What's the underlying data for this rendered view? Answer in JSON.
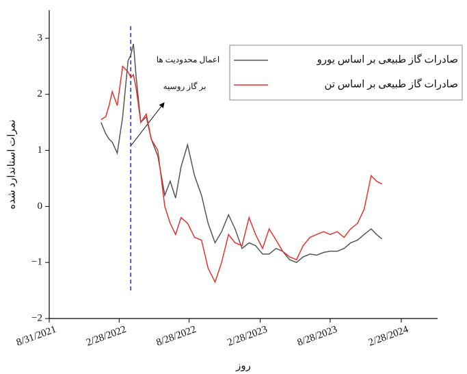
{
  "chart_data": {
    "type": "line",
    "ylabel": "نمرات استاندارد شده",
    "xlabel": "روز",
    "annotation": [
      "اعمال محدودیت ها",
      "بر گاز روسیه"
    ],
    "legend": "upper right",
    "x": [
      "1/12/2022",
      "1/24/2022",
      "2/2/2022",
      "2/10/2022",
      "2/23/2022",
      "3/9/2022",
      "3/23/2022",
      "3/30/2022",
      "4/6/2022",
      "4/13/2022",
      "4/25/2022",
      "5/9/2022",
      "5/22/2022",
      "6/8/2022",
      "6/26/2022",
      "7/10/2022",
      "7/24/2022",
      "8/7/2022",
      "8/24/2022",
      "9/11/2022",
      "9/29/2022",
      "10/16/2022",
      "11/3/2022",
      "11/20/2022",
      "12/8/2022",
      "12/25/2022",
      "1/12/2023",
      "1/30/2023",
      "2/16/2023",
      "3/6/2023",
      "3/23/2023",
      "4/10/2023",
      "4/27/2023",
      "5/15/2023",
      "6/2/2023",
      "6/19/2023",
      "7/7/2023",
      "7/24/2023",
      "8/11/2023",
      "8/28/2023",
      "9/15/2023",
      "10/3/2023",
      "10/20/2023",
      "11/7/2023",
      "11/24/2023",
      "12/12/2023",
      "12/26/2023",
      "1/9/2024"
    ],
    "series": [
      {
        "name": "صادرات گاز طبیعی بر اساس یورو",
        "color": "#555555",
        "values": [
          1.5,
          1.3,
          1.2,
          1.15,
          0.95,
          1.6,
          2.6,
          2.7,
          2.9,
          2.3,
          1.5,
          1.6,
          1.2,
          0.9,
          0.2,
          0.45,
          0.15,
          0.7,
          1.1,
          0.55,
          0.2,
          -0.3,
          -0.65,
          -0.45,
          -0.15,
          -0.4,
          -0.75,
          -0.65,
          -0.7,
          -0.85,
          -0.85,
          -0.75,
          -0.8,
          -0.95,
          -1.0,
          -0.9,
          -0.85,
          -0.87,
          -0.82,
          -0.8,
          -0.8,
          -0.75,
          -0.65,
          -0.6,
          -0.5,
          -0.4,
          -0.5,
          -0.58
        ]
      },
      {
        "name": "صادرات گاز طبیعی بر اساس تن",
        "color": "#e8302a",
        "values": [
          1.55,
          1.6,
          1.8,
          2.05,
          1.8,
          2.5,
          2.4,
          2.3,
          2.35,
          2.1,
          1.5,
          1.65,
          1.2,
          1.0,
          0.0,
          -0.3,
          -0.5,
          -0.2,
          -0.3,
          -0.55,
          -0.6,
          -1.1,
          -1.35,
          -1.0,
          -0.5,
          -0.65,
          -0.7,
          -0.2,
          -0.5,
          -0.75,
          -0.4,
          -0.6,
          -0.8,
          -0.9,
          -0.95,
          -0.7,
          -0.55,
          -0.5,
          -0.45,
          -0.5,
          -0.45,
          -0.55,
          -0.4,
          -0.3,
          -0.05,
          0.55,
          0.45,
          0.4
        ]
      }
    ],
    "vline": {
      "x": "3/30/2022",
      "ylim": [
        -1.5,
        3.25
      ],
      "color": "#2233dd"
    },
    "xlim": [
      "8/31/2021",
      "6/1/2024"
    ],
    "xticks": [
      "8/31/2021",
      "2/28/2022",
      "8/28/2022",
      "2/28/2023",
      "8/28/2023",
      "2/28/2024"
    ],
    "ylim": [
      -2,
      3.5
    ],
    "yticks": [
      {
        "value": -2,
        "label": "−2"
      },
      {
        "value": -1,
        "label": "−1"
      },
      0,
      1,
      2,
      3
    ]
  }
}
